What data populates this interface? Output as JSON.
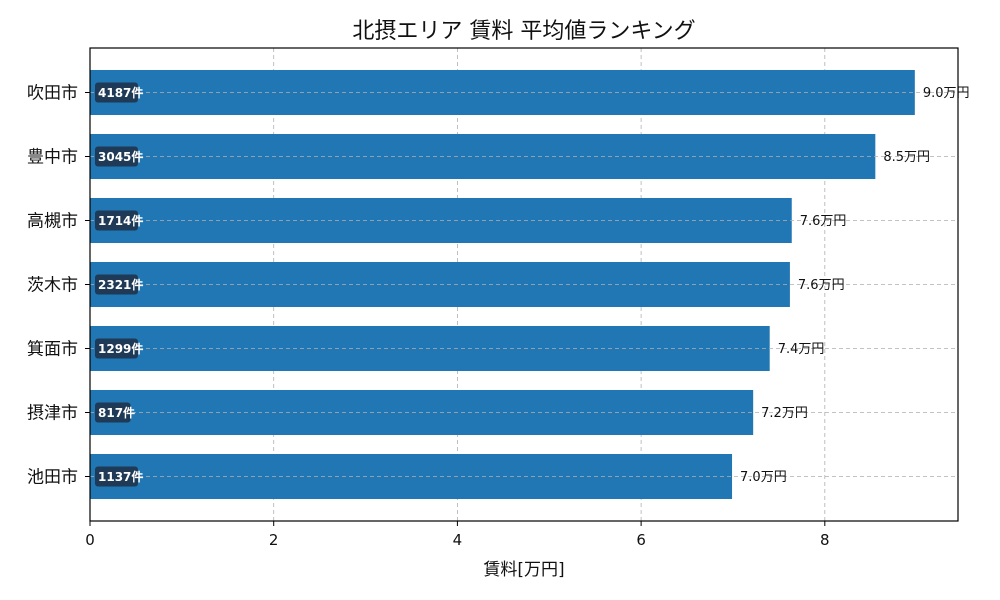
{
  "chart_data": {
    "type": "bar",
    "orientation": "horizontal",
    "title": "北摂エリア 賃料 平均値ランキング",
    "xlabel": "賃料[万円]",
    "ylabel": "",
    "xlim": [
      0,
      9.45
    ],
    "xticks": [
      0,
      2,
      4,
      6,
      8
    ],
    "grid": true,
    "categories": [
      "吹田市",
      "豊中市",
      "高槻市",
      "茨木市",
      "箕面市",
      "摂津市",
      "池田市"
    ],
    "values": [
      8.98,
      8.55,
      7.64,
      7.62,
      7.4,
      7.22,
      6.99
    ],
    "value_labels": [
      "9.0万円",
      "8.5万円",
      "7.6万円",
      "7.6万円",
      "7.4万円",
      "7.2万円",
      "7.0万円"
    ],
    "count_labels": [
      "4187件",
      "3045件",
      "1714件",
      "2321件",
      "1299件",
      "817件",
      "1137件"
    ],
    "colors": {
      "bar": "#2077b4",
      "count_badge": "#1f3a56",
      "grid": "#b0b0b0"
    }
  }
}
